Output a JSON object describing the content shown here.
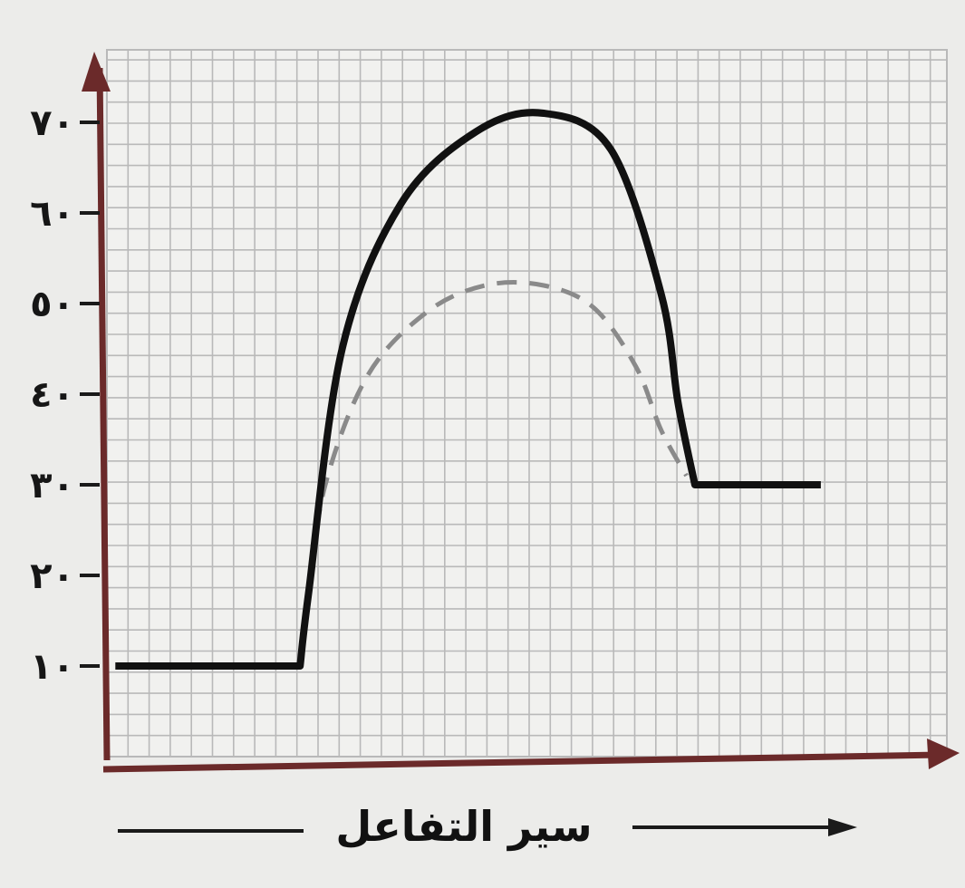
{
  "colors": {
    "background": "#ececea",
    "grid": "#b9b9b9",
    "axis": "#6b2a2a",
    "curve_catalyzed": "#8a8a8a",
    "curve_uncatalyzed": "#111111"
  },
  "chart_data": {
    "type": "line",
    "title": "",
    "xlabel": "سير التفاعل",
    "ylabel": "",
    "ylim": [
      0,
      78
    ],
    "xlim": [
      0,
      10
    ],
    "y_ticks": [
      10,
      20,
      30,
      40,
      50,
      60,
      70
    ],
    "y_tick_labels": [
      "١٠",
      "٢٠",
      "٣٠",
      "٤٠",
      "٥٠",
      "٦٠",
      "٧٠"
    ],
    "grid": true,
    "legend": "none",
    "series": [
      {
        "style": "solid",
        "x": [
          0.1,
          2.3,
          2.4,
          2.8,
          3.5,
          4.4,
          5.2,
          6.0,
          6.6,
          6.8,
          7.0,
          8.0,
          8.5
        ],
        "y": [
          10,
          10,
          18,
          45,
          61,
          69,
          71,
          67,
          51,
          39,
          30,
          30,
          30
        ]
      },
      {
        "style": "dashed",
        "x": [
          2.4,
          2.6,
          3.1,
          3.8,
          4.5,
          5.2,
          5.8,
          6.3,
          6.6,
          6.9
        ],
        "y": [
          18,
          30,
          42,
          49,
          52,
          52,
          49.5,
          43,
          36,
          31
        ]
      }
    ]
  }
}
